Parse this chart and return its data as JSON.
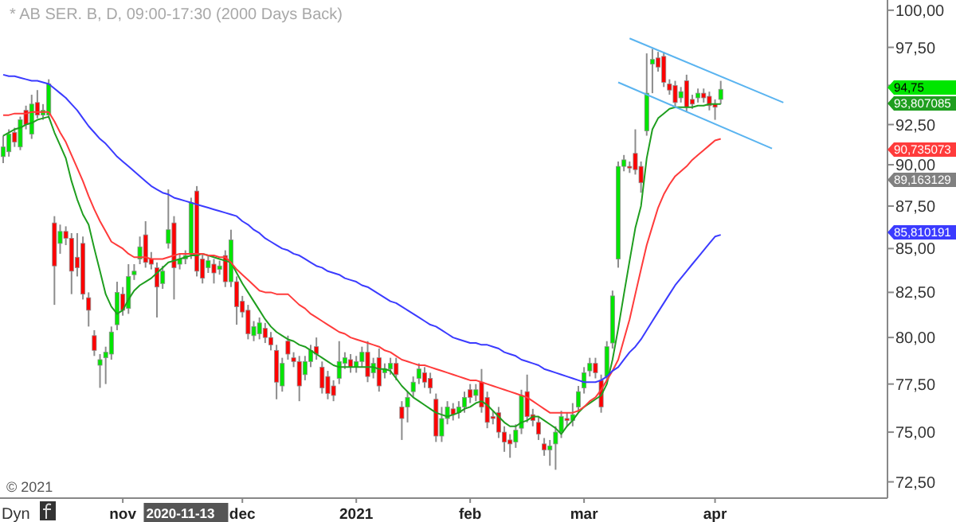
{
  "chart_data": {
    "type": "candlestick",
    "title": "* AB SER. B, D, 09:00-17:30 (2000 Days Back)",
    "log": "y",
    "ylim": [
      71.7,
      100.7
    ],
    "yticks": [
      {
        "value": 72.5,
        "label": "72,50"
      },
      {
        "value": 75,
        "label": "75,00"
      },
      {
        "value": 77.5,
        "label": "77,50"
      },
      {
        "value": 80,
        "label": "80,00"
      },
      {
        "value": 82.5,
        "label": "82,50"
      },
      {
        "value": 85,
        "label": "85,00"
      },
      {
        "value": 87.5,
        "label": "87,50"
      },
      {
        "value": 90,
        "label": "90,00"
      },
      {
        "value": 92.5,
        "label": "92,50"
      },
      {
        "value": 95,
        "label": null
      },
      {
        "value": 97.5,
        "label": "97,50"
      },
      {
        "value": 100,
        "label": "100,00"
      }
    ],
    "categories": [
      null,
      null,
      null,
      null,
      null,
      null,
      null,
      null,
      null,
      null,
      null,
      null,
      null,
      null,
      null,
      null,
      null,
      null,
      null,
      null,
      null,
      "nov",
      null,
      null,
      null,
      null,
      null,
      null,
      null,
      null,
      "2020-11-13",
      null,
      null,
      null,
      null,
      null,
      null,
      null,
      null,
      null,
      null,
      null,
      "dec",
      null,
      null,
      null,
      null,
      null,
      null,
      null,
      null,
      null,
      null,
      null,
      null,
      null,
      null,
      null,
      null,
      null,
      null,
      null,
      "2021",
      null,
      null,
      null,
      null,
      null,
      null,
      null,
      null,
      null,
      null,
      null,
      null,
      null,
      null,
      null,
      null,
      null,
      null,
      null,
      "feb",
      null,
      null,
      null,
      null,
      null,
      null,
      null,
      null,
      null,
      null,
      null,
      null,
      null,
      null,
      null,
      null,
      null,
      null,
      null,
      "mar",
      null,
      null,
      null,
      null,
      null,
      null,
      null,
      null,
      null,
      null,
      null,
      null,
      null,
      null,
      null,
      null,
      null,
      null,
      null,
      null,
      null,
      null,
      "apr",
      null,
      null,
      null,
      null,
      null,
      null,
      null,
      null,
      null,
      null,
      null,
      null,
      null,
      null,
      null,
      null,
      null,
      null,
      null,
      null,
      null,
      null,
      null,
      null,
      null,
      null,
      null,
      null,
      null,
      null
    ],
    "ohlc": [
      [
        90.5,
        91.8,
        90.1,
        91.1
      ],
      [
        90.8,
        92.2,
        90.5,
        91.9
      ],
      [
        92.0,
        92.3,
        91.1,
        91.4
      ],
      [
        91.1,
        93.0,
        90.9,
        92.8
      ],
      [
        93.4,
        93.7,
        92.2,
        92.5
      ],
      [
        91.9,
        94.4,
        91.6,
        93.8
      ],
      [
        93.9,
        94.7,
        92.9,
        93.1
      ],
      [
        93.1,
        93.8,
        92.8,
        93.4
      ],
      [
        93.1,
        95.4,
        92.9,
        95.1
      ],
      [
        86.5,
        86.9,
        81.8,
        84.0
      ],
      [
        85.3,
        86.4,
        84.7,
        86.0
      ],
      [
        86.0,
        86.3,
        85.2,
        85.6
      ],
      [
        85.6,
        85.9,
        82.4,
        83.7
      ],
      [
        84.5,
        85.9,
        83.4,
        83.9
      ],
      [
        85.3,
        85.7,
        82.1,
        82.4
      ],
      [
        82.2,
        82.5,
        80.6,
        81.5
      ],
      [
        80.1,
        80.4,
        79.0,
        79.3
      ],
      [
        78.5,
        79.1,
        77.3,
        78.8
      ],
      [
        78.9,
        79.5,
        77.5,
        79.2
      ],
      [
        79.1,
        80.6,
        78.8,
        80.3
      ],
      [
        80.7,
        83.1,
        80.4,
        82.5
      ],
      [
        82.4,
        82.8,
        81.2,
        81.5
      ],
      [
        81.6,
        84.1,
        81.3,
        83.4
      ],
      [
        83.5,
        84.1,
        83.2,
        83.7
      ],
      [
        84.4,
        85.7,
        84.1,
        85.1
      ],
      [
        85.8,
        86.6,
        83.9,
        84.2
      ],
      [
        84.4,
        84.8,
        83.8,
        84.1
      ],
      [
        83.9,
        84.2,
        81.1,
        82.8
      ],
      [
        83.0,
        84.0,
        82.7,
        83.7
      ],
      [
        85.3,
        88.5,
        85.0,
        86.1
      ],
      [
        86.5,
        86.9,
        82.1,
        83.9
      ],
      [
        84.1,
        84.7,
        83.8,
        84.4
      ],
      [
        84.4,
        84.9,
        84.1,
        84.6
      ],
      [
        84.7,
        88.0,
        84.4,
        87.7
      ],
      [
        88.4,
        88.7,
        83.4,
        83.7
      ],
      [
        84.4,
        84.7,
        83.0,
        83.3
      ],
      [
        83.9,
        84.6,
        83.6,
        84.3
      ],
      [
        84.1,
        84.4,
        83.0,
        83.6
      ],
      [
        83.8,
        84.3,
        83.5,
        84.0
      ],
      [
        84.6,
        84.9,
        82.8,
        83.1
      ],
      [
        83.1,
        86.1,
        82.8,
        85.5
      ],
      [
        83.1,
        83.4,
        80.7,
        81.7
      ],
      [
        82.0,
        82.3,
        81.1,
        81.4
      ],
      [
        81.5,
        81.8,
        79.9,
        80.2
      ],
      [
        80.1,
        80.9,
        79.8,
        80.6
      ],
      [
        80.2,
        81.1,
        79.9,
        80.8
      ],
      [
        80.5,
        80.8,
        79.7,
        80.0
      ],
      [
        80.0,
        80.3,
        79.3,
        79.6
      ],
      [
        79.3,
        79.6,
        76.7,
        77.6
      ],
      [
        77.4,
        78.9,
        77.1,
        78.6
      ],
      [
        79.8,
        80.1,
        78.8,
        79.1
      ],
      [
        78.9,
        79.2,
        78.4,
        78.7
      ],
      [
        78.7,
        79.0,
        76.6,
        77.4
      ],
      [
        78.0,
        79.0,
        77.7,
        78.7
      ],
      [
        78.7,
        79.6,
        78.4,
        79.3
      ],
      [
        79.5,
        80.0,
        78.8,
        79.1
      ],
      [
        78.4,
        78.7,
        77.0,
        77.3
      ],
      [
        77.9,
        78.2,
        76.7,
        77.0
      ],
      [
        77.4,
        77.7,
        76.6,
        76.9
      ],
      [
        77.8,
        79.8,
        77.5,
        78.7
      ],
      [
        78.6,
        79.2,
        78.3,
        78.9
      ],
      [
        78.8,
        79.1,
        78.1,
        78.4
      ],
      [
        78.4,
        79.0,
        78.1,
        78.7
      ],
      [
        78.7,
        79.5,
        78.4,
        79.2
      ],
      [
        79.2,
        79.8,
        77.6,
        77.9
      ],
      [
        78.1,
        78.9,
        77.8,
        78.6
      ],
      [
        78.9,
        79.4,
        77.1,
        77.4
      ],
      [
        78.1,
        78.6,
        77.8,
        78.3
      ],
      [
        78.3,
        78.9,
        78.0,
        78.6
      ],
      [
        78.6,
        78.9,
        77.7,
        78.0
      ],
      [
        76.3,
        76.6,
        74.6,
        75.7
      ],
      [
        76.3,
        77.1,
        75.5,
        76.8
      ],
      [
        77.1,
        77.9,
        76.8,
        77.6
      ],
      [
        77.8,
        78.6,
        77.5,
        78.3
      ],
      [
        78.1,
        78.4,
        77.3,
        77.6
      ],
      [
        77.8,
        78.1,
        77.0,
        77.3
      ],
      [
        76.7,
        77.0,
        74.5,
        74.8
      ],
      [
        74.8,
        76.3,
        74.5,
        75.7
      ],
      [
        75.7,
        76.6,
        75.4,
        76.3
      ],
      [
        76.2,
        76.5,
        75.6,
        75.9
      ],
      [
        76.0,
        76.6,
        75.7,
        76.3
      ],
      [
        76.3,
        77.1,
        76.0,
        76.8
      ],
      [
        77.2,
        77.5,
        76.5,
        76.8
      ],
      [
        76.9,
        77.5,
        76.6,
        77.2
      ],
      [
        77.6,
        78.3,
        76.0,
        76.3
      ],
      [
        76.8,
        77.1,
        75.2,
        75.5
      ],
      [
        75.8,
        76.1,
        75.4,
        75.7
      ],
      [
        76.0,
        76.3,
        74.7,
        75.0
      ],
      [
        75.0,
        75.3,
        74.0,
        74.5
      ],
      [
        74.6,
        74.9,
        73.7,
        74.4
      ],
      [
        74.5,
        75.4,
        74.2,
        75.1
      ],
      [
        75.2,
        77.2,
        74.9,
        76.9
      ],
      [
        77.1,
        78.0,
        75.5,
        75.8
      ],
      [
        75.9,
        76.2,
        75.3,
        75.6
      ],
      [
        75.5,
        75.8,
        74.6,
        74.9
      ],
      [
        74.4,
        74.7,
        73.8,
        74.1
      ],
      [
        74.1,
        74.6,
        73.3,
        74.3
      ],
      [
        74.4,
        75.3,
        73.1,
        75.0
      ],
      [
        75.0,
        76.1,
        74.7,
        75.8
      ],
      [
        75.7,
        76.0,
        75.3,
        75.6
      ],
      [
        75.6,
        76.5,
        75.3,
        75.9
      ],
      [
        76.3,
        77.4,
        76.0,
        77.1
      ],
      [
        77.3,
        78.4,
        77.0,
        78.1
      ],
      [
        78.2,
        78.9,
        77.9,
        78.6
      ],
      [
        78.6,
        78.9,
        77.8,
        78.1
      ],
      [
        77.7,
        78.0,
        76.0,
        76.3
      ],
      [
        77.9,
        79.8,
        77.6,
        79.5
      ],
      [
        79.7,
        82.6,
        79.4,
        82.3
      ],
      [
        84.4,
        90.2,
        83.9,
        89.9
      ],
      [
        89.9,
        90.6,
        89.6,
        90.3
      ],
      [
        89.9,
        90.2,
        89.5,
        89.8
      ],
      [
        90.7,
        92.2,
        89.4,
        89.7
      ],
      [
        89.9,
        90.2,
        88.3,
        88.9
      ],
      [
        92.1,
        97.1,
        91.8,
        94.5
      ],
      [
        96.4,
        97.4,
        94.5,
        96.7
      ],
      [
        96.8,
        97.2,
        95.9,
        96.2
      ],
      [
        96.9,
        97.2,
        94.9,
        95.2
      ],
      [
        95.1,
        95.4,
        94.4,
        94.7
      ],
      [
        95.0,
        95.3,
        93.6,
        93.9
      ],
      [
        94.2,
        94.9,
        93.9,
        94.6
      ],
      [
        95.3,
        95.7,
        93.3,
        93.6
      ],
      [
        94.1,
        94.4,
        93.5,
        93.8
      ],
      [
        94.2,
        94.8,
        93.9,
        94.5
      ],
      [
        94.5,
        94.8,
        93.9,
        94.2
      ],
      [
        94.3,
        94.6,
        93.4,
        93.7
      ],
      [
        93.8,
        94.1,
        92.8,
        93.6
      ],
      [
        94.1,
        95.3,
        93.8,
        94.75
      ],
      null,
      null,
      null,
      null,
      null,
      null,
      null,
      null,
      null,
      null,
      null,
      null,
      null,
      null,
      null,
      null,
      null,
      null,
      null,
      null,
      null,
      null,
      null,
      null,
      null,
      null,
      null,
      null,
      null
    ],
    "series": [
      {
        "type": "line",
        "color": "#1f9e1f",
        "values": [
          91.8,
          92.0,
          92.2,
          92.3,
          92.5,
          92.6,
          92.8,
          92.9,
          93.0,
          92.0,
          91.2,
          90.4,
          89.0,
          87.9,
          87.0,
          86.4,
          85.0,
          83.7,
          82.4,
          81.7,
          81.3,
          81.5,
          82.1,
          82.6,
          82.9,
          83.1,
          83.3,
          83.6,
          83.9,
          84.2,
          84.3,
          84.4,
          84.5,
          84.6,
          84.6,
          84.7,
          84.6,
          84.5,
          84.4,
          84.3,
          84.2,
          83.6,
          83.0,
          82.5,
          82.0,
          81.5,
          81.0,
          80.6,
          80.3,
          80.1,
          79.9,
          79.8,
          79.6,
          79.5,
          79.3,
          79.1,
          78.9,
          78.7,
          78.5,
          78.4,
          78.4,
          78.4,
          78.4,
          78.4,
          78.4,
          78.4,
          78.3,
          78.3,
          78.2,
          77.8,
          77.4,
          77.1,
          76.8,
          76.6,
          76.4,
          76.2,
          76.0,
          75.9,
          75.8,
          75.9,
          76.0,
          76.2,
          76.3,
          76.5,
          76.6,
          76.4,
          76.1,
          75.8,
          75.5,
          75.3,
          75.3,
          75.5,
          75.6,
          75.8,
          75.8,
          75.6,
          75.4,
          75.2,
          74.9,
          75.3,
          75.6,
          76.0,
          76.3,
          76.5,
          76.7,
          76.9,
          77.5,
          78.8,
          80.5,
          82.4,
          84.3,
          86.2,
          87.5,
          90.4,
          92.2,
          92.9,
          93.2,
          93.5,
          93.6,
          93.6,
          93.6,
          93.6,
          93.7,
          93.7,
          93.8,
          93.8,
          93.8,
          null,
          null,
          null,
          null,
          null,
          null,
          null,
          null,
          null,
          null,
          null,
          null,
          null,
          null,
          null,
          null,
          null,
          null,
          null,
          null,
          null,
          null,
          null,
          null,
          null,
          null,
          null,
          null,
          null
        ]
      },
      {
        "type": "line",
        "color": "#ff3b3b",
        "values": [
          93.1,
          93.1,
          93.2,
          93.2,
          93.2,
          93.3,
          93.3,
          93.3,
          93.3,
          92.7,
          92.0,
          91.4,
          90.6,
          89.8,
          89.0,
          88.1,
          87.3,
          86.6,
          86.0,
          85.4,
          85.2,
          85.0,
          84.7,
          84.5,
          84.5,
          84.5,
          84.4,
          84.4,
          84.4,
          84.5,
          84.6,
          84.7,
          84.7,
          84.7,
          84.7,
          84.7,
          84.6,
          84.6,
          84.5,
          84.5,
          84.2,
          83.8,
          83.5,
          83.2,
          82.9,
          82.6,
          82.5,
          82.5,
          82.4,
          82.4,
          82.4,
          82.1,
          81.8,
          81.6,
          81.3,
          81.1,
          80.9,
          80.7,
          80.5,
          80.3,
          80.2,
          80.0,
          79.9,
          79.8,
          79.7,
          79.6,
          79.5,
          79.3,
          79.2,
          79.0,
          78.8,
          78.7,
          78.6,
          78.5,
          78.5,
          78.4,
          78.3,
          78.2,
          78.1,
          78.0,
          77.9,
          77.8,
          77.7,
          77.7,
          77.6,
          77.5,
          77.4,
          77.3,
          77.2,
          77.1,
          77.0,
          76.9,
          76.8,
          76.6,
          76.4,
          76.2,
          76.0,
          76.0,
          76.0,
          76.0,
          76.0,
          76.1,
          76.3,
          76.6,
          76.8,
          77.2,
          77.7,
          78.2,
          78.8,
          79.9,
          81.0,
          82.4,
          83.8,
          85.2,
          86.3,
          87.4,
          88.2,
          88.8,
          89.3,
          89.6,
          89.9,
          90.3,
          90.6,
          90.9,
          91.2,
          91.5,
          91.6,
          null,
          null,
          null,
          null,
          null,
          null,
          null,
          null,
          null,
          null,
          null,
          null,
          null,
          null,
          null,
          null,
          null,
          null,
          null,
          null,
          null,
          null,
          null,
          null,
          null,
          null,
          null,
          null,
          null
        ]
      },
      {
        "type": "line",
        "color": "#3b3bff",
        "values": [
          95.7,
          95.6,
          95.6,
          95.5,
          95.4,
          95.3,
          95.3,
          95.2,
          95.1,
          94.8,
          94.5,
          94.2,
          93.8,
          93.4,
          92.9,
          92.4,
          92.0,
          91.6,
          91.3,
          90.9,
          90.5,
          90.2,
          89.9,
          89.6,
          89.3,
          89.0,
          88.7,
          88.5,
          88.3,
          88.2,
          88.0,
          87.9,
          87.8,
          87.7,
          87.6,
          87.5,
          87.4,
          87.3,
          87.2,
          87.1,
          87.0,
          86.9,
          86.6,
          86.4,
          86.1,
          85.9,
          85.6,
          85.4,
          85.2,
          85.0,
          84.9,
          84.7,
          84.6,
          84.4,
          84.2,
          84.0,
          83.9,
          83.7,
          83.6,
          83.5,
          83.3,
          83.2,
          83.1,
          82.9,
          82.8,
          82.6,
          82.4,
          82.2,
          82.0,
          81.9,
          81.7,
          81.5,
          81.3,
          81.1,
          80.9,
          80.7,
          80.6,
          80.4,
          80.2,
          80.0,
          79.9,
          79.8,
          79.7,
          79.7,
          79.6,
          79.6,
          79.5,
          79.4,
          79.2,
          79.1,
          79.0,
          78.8,
          78.7,
          78.6,
          78.5,
          78.3,
          78.2,
          78.1,
          78.0,
          77.9,
          77.8,
          77.7,
          77.6,
          77.6,
          77.6,
          77.7,
          77.9,
          78.2,
          78.4,
          78.8,
          79.2,
          79.5,
          79.9,
          80.4,
          80.9,
          81.4,
          81.9,
          82.4,
          82.9,
          83.3,
          83.7,
          84.1,
          84.5,
          84.9,
          85.3,
          85.7,
          85.8,
          null,
          null,
          null,
          null,
          null,
          null,
          null,
          null,
          null,
          null,
          null,
          null,
          null,
          null,
          null,
          null,
          null,
          null,
          null,
          null,
          null,
          null,
          null,
          null,
          null,
          null,
          null,
          null,
          null
        ]
      },
      {
        "type": "line",
        "color": "#5ab4f0",
        "values": [
          null,
          null,
          null,
          null,
          null,
          null,
          null,
          null,
          null,
          null,
          null,
          null,
          null,
          null,
          null,
          null,
          null,
          null,
          null,
          null,
          null,
          null,
          null,
          null,
          null,
          null,
          null,
          null,
          null,
          null,
          null,
          null,
          null,
          null,
          null,
          null,
          null,
          null,
          null,
          null,
          null,
          null,
          null,
          null,
          null,
          null,
          null,
          null,
          null,
          null,
          null,
          null,
          null,
          null,
          null,
          null,
          null,
          null,
          null,
          null,
          null,
          null,
          null,
          null,
          null,
          null,
          null,
          null,
          null,
          null,
          null,
          null,
          null,
          null,
          null,
          null,
          null,
          null,
          null,
          null,
          null,
          null,
          null,
          null,
          null,
          null,
          null,
          null,
          null,
          null,
          null,
          null,
          null,
          null,
          null,
          null,
          null,
          null,
          null,
          null,
          null,
          null,
          null,
          null,
          null,
          null,
          null,
          null,
          null,
          null,
          98.1,
          null,
          null,
          null,
          null,
          null,
          null,
          null,
          null,
          null,
          null,
          null,
          null,
          null,
          null,
          null,
          null,
          null,
          null,
          null,
          null,
          null,
          null,
          null,
          null,
          null,
          null,
          93.9,
          null,
          null,
          null,
          null,
          null,
          null,
          null,
          null,
          null,
          null,
          null,
          null,
          null,
          null,
          null,
          null,
          null,
          null
        ]
      },
      {
        "type": "line",
        "color": "#5ab4f0",
        "values": [
          null,
          null,
          null,
          null,
          null,
          null,
          null,
          null,
          null,
          null,
          null,
          null,
          null,
          null,
          null,
          null,
          null,
          null,
          null,
          null,
          null,
          null,
          null,
          null,
          null,
          null,
          null,
          null,
          null,
          null,
          null,
          null,
          null,
          null,
          null,
          null,
          null,
          null,
          null,
          null,
          null,
          null,
          null,
          null,
          null,
          null,
          null,
          null,
          null,
          null,
          null,
          null,
          null,
          null,
          null,
          null,
          null,
          null,
          null,
          null,
          null,
          null,
          null,
          null,
          null,
          null,
          null,
          null,
          null,
          null,
          null,
          null,
          null,
          null,
          null,
          null,
          null,
          null,
          null,
          null,
          null,
          null,
          null,
          null,
          null,
          null,
          null,
          null,
          null,
          null,
          null,
          null,
          null,
          null,
          null,
          null,
          null,
          null,
          null,
          null,
          null,
          null,
          null,
          null,
          null,
          null,
          null,
          null,
          95.2,
          null,
          null,
          null,
          null,
          null,
          null,
          null,
          null,
          null,
          null,
          null,
          null,
          null,
          null,
          null,
          null,
          null,
          null,
          null,
          null,
          null,
          null,
          null,
          null,
          null,
          null,
          91.0,
          null,
          null,
          null,
          null,
          null,
          null,
          null,
          null,
          null,
          null,
          null,
          null,
          null,
          null,
          null,
          null,
          null,
          null,
          null,
          null
        ]
      }
    ],
    "annotations": [
      "94,75",
      "93,807085",
      "90,735073",
      "89,163129",
      "85,810191",
      "© 2021",
      "Dyn"
    ]
  }
}
